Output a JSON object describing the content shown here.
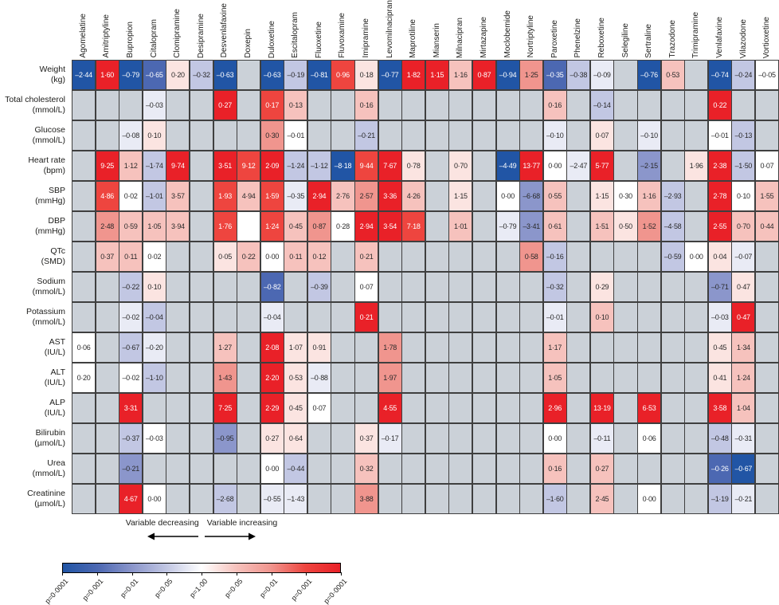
{
  "chart_data": {
    "type": "heatmap",
    "columns": [
      "Agomelatine",
      "Amitriptyline",
      "Bupropion",
      "Citalopram",
      "Clomipramine",
      "Desipramine",
      "Desvenlafaxine",
      "Doxepin",
      "Duloxetine",
      "Escitalopram",
      "Fluoxetine",
      "Fluvoxamine",
      "Imipramine",
      "Levomilnacipran",
      "Maprotiline",
      "Mianserin",
      "Milnacipran",
      "Mirtazapine",
      "Moclobemide",
      "Nortriptyline",
      "Paroxetine",
      "Phenelzine",
      "Reboxetine",
      "Selegiline",
      "Sertraline",
      "Trazodone",
      "Trimipramine",
      "Venlafaxine",
      "Vilazodone",
      "Vortioxetine"
    ],
    "rows": [
      {
        "label": "Weight",
        "unit": "(kg)"
      },
      {
        "label": "Total cholesterol",
        "unit": "(mmol/L)"
      },
      {
        "label": "Glucose",
        "unit": "(mmol/L)"
      },
      {
        "label": "Heart rate",
        "unit": "(bpm)"
      },
      {
        "label": "SBP",
        "unit": "(mmHg)"
      },
      {
        "label": "DBP",
        "unit": "(mmHg)"
      },
      {
        "label": "QTc",
        "unit": "(SMD)"
      },
      {
        "label": "Sodium",
        "unit": "(mmol/L)"
      },
      {
        "label": "Potassium",
        "unit": "(mmol/L)"
      },
      {
        "label": "AST",
        "unit": "(IU/L)"
      },
      {
        "label": "ALT",
        "unit": "(IU/L)"
      },
      {
        "label": "ALP",
        "unit": "(IU/L)"
      },
      {
        "label": "Bilirubin",
        "unit": "(µmol/L)"
      },
      {
        "label": "Urea",
        "unit": "(mmol/L)"
      },
      {
        "label": "Creatinine",
        "unit": "(µmol/L)"
      }
    ],
    "cells": [
      [
        [
          "–2·44",
          "b4"
        ],
        [
          "1·60",
          "r4"
        ],
        [
          "–0·79",
          "b4"
        ],
        [
          "–0·65",
          "b3"
        ],
        [
          "0·20",
          "r0"
        ],
        [
          "–0·32",
          "b1"
        ],
        [
          "–0·63",
          "b4"
        ],
        null,
        [
          "–0·63",
          "b4"
        ],
        [
          "–0·19",
          "b1"
        ],
        [
          "–0·81",
          "b4"
        ],
        [
          "0·96",
          "r3"
        ],
        [
          "0·18",
          "r0"
        ],
        [
          "–0·77",
          "b4"
        ],
        [
          "1·82",
          "r4"
        ],
        [
          "1·15",
          "r4"
        ],
        [
          "1·16",
          "r1"
        ],
        [
          "0·87",
          "r4"
        ],
        [
          "–0·94",
          "b4"
        ],
        [
          "1·25",
          "r2"
        ],
        [
          "–0·35",
          "b3"
        ],
        [
          "–0·38",
          "b1"
        ],
        [
          "–0·09",
          "b0"
        ],
        null,
        [
          "–0·76",
          "b4"
        ],
        [
          "0·53",
          "r1"
        ],
        null,
        [
          "–0·74",
          "b4"
        ],
        [
          "–0·24",
          "b1"
        ],
        [
          "–0·05",
          "w"
        ]
      ],
      [
        null,
        null,
        null,
        [
          "–0·03",
          "b0"
        ],
        null,
        null,
        [
          "0·27",
          "r4"
        ],
        null,
        [
          "0·17",
          "r3"
        ],
        [
          "0·13",
          "r1"
        ],
        null,
        null,
        [
          "0·16",
          "r1"
        ],
        null,
        null,
        null,
        null,
        null,
        null,
        null,
        [
          "0·16",
          "r1"
        ],
        null,
        [
          "–0·14",
          "b1"
        ],
        null,
        null,
        null,
        null,
        [
          "0·22",
          "r4"
        ],
        null,
        null
      ],
      [
        null,
        null,
        [
          "–0·08",
          "b0"
        ],
        [
          "0·10",
          "r0"
        ],
        null,
        null,
        null,
        null,
        [
          "0·30",
          "r2"
        ],
        [
          "–0·01",
          "w"
        ],
        null,
        null,
        [
          "–0·21",
          "b1"
        ],
        null,
        null,
        null,
        null,
        null,
        null,
        null,
        [
          "–0·10",
          "b0"
        ],
        null,
        [
          "0·07",
          "r0"
        ],
        null,
        [
          "–0·10",
          "b0"
        ],
        null,
        null,
        [
          "–0·01",
          "w"
        ],
        [
          "–0·13",
          "b1"
        ],
        null
      ],
      [
        null,
        [
          "9·25",
          "r4"
        ],
        [
          "1·12",
          "r1"
        ],
        [
          "–1·74",
          "b1"
        ],
        [
          "9·74",
          "r4"
        ],
        null,
        [
          "3·51",
          "r4"
        ],
        [
          "9·12",
          "r3"
        ],
        [
          "2·09",
          "r4"
        ],
        [
          "–1·24",
          "b1"
        ],
        [
          "–1·12",
          "b1"
        ],
        [
          "–8·18",
          "b4"
        ],
        [
          "9·44",
          "r3"
        ],
        [
          "7·67",
          "r4"
        ],
        [
          "0·78",
          "r0"
        ],
        null,
        [
          "0·70",
          "r0"
        ],
        null,
        [
          "–4·49",
          "b4"
        ],
        [
          "13·77",
          "r4"
        ],
        [
          "0·00",
          "w"
        ],
        [
          "–2·47",
          "b0"
        ],
        [
          "5·77",
          "r4"
        ],
        null,
        [
          "–2·15",
          "b2"
        ],
        null,
        [
          "1·96",
          "r0"
        ],
        [
          "2·38",
          "r4"
        ],
        [
          "–1·50",
          "b1"
        ],
        [
          "0·07",
          "w"
        ]
      ],
      [
        null,
        [
          "4·86",
          "r3"
        ],
        [
          "0·02",
          "w"
        ],
        [
          "–1·01",
          "b1"
        ],
        [
          "3·57",
          "r1"
        ],
        null,
        [
          "1·93",
          "r3"
        ],
        [
          "4·94",
          "r1"
        ],
        [
          "1·59",
          "r3"
        ],
        [
          "–0·35",
          "b0"
        ],
        [
          "2·94",
          "r4"
        ],
        [
          "2·76",
          "r1"
        ],
        [
          "2·57",
          "r2"
        ],
        [
          "3·36",
          "r4"
        ],
        [
          "4·26",
          "r1"
        ],
        null,
        [
          "1·15",
          "r0"
        ],
        null,
        [
          "0·00",
          "w"
        ],
        [
          "–6·68",
          "b2"
        ],
        [
          "0·55",
          "r1"
        ],
        null,
        [
          "1·15",
          "r0"
        ],
        [
          "0·30",
          "w"
        ],
        [
          "1·16",
          "r1"
        ],
        [
          "–2·93",
          "b1"
        ],
        null,
        [
          "2·78",
          "r4"
        ],
        [
          "0·10",
          "w"
        ],
        [
          "1·55",
          "r1"
        ]
      ],
      [
        null,
        [
          "2·48",
          "r2"
        ],
        [
          "0·59",
          "r1"
        ],
        [
          "1·05",
          "r1"
        ],
        [
          "3·94",
          "r1"
        ],
        null,
        [
          "1·76",
          "r3"
        ],
        [
          "",
          "w"
        ],
        [
          "1·24",
          "r3"
        ],
        [
          "0·45",
          "r1"
        ],
        [
          "0·87",
          "r2"
        ],
        [
          "0·28",
          "w"
        ],
        [
          "2·94",
          "r4"
        ],
        [
          "3·54",
          "r4"
        ],
        [
          "7·18",
          "r3"
        ],
        null,
        [
          "1·01",
          "r1"
        ],
        null,
        [
          "–0·79",
          "b0"
        ],
        [
          "–3·41",
          "b2"
        ],
        [
          "0·61",
          "r1"
        ],
        null,
        [
          "1·51",
          "r1"
        ],
        [
          "0·50",
          "r0"
        ],
        [
          "1·52",
          "r2"
        ],
        [
          "–4·58",
          "b1"
        ],
        null,
        [
          "2·55",
          "r4"
        ],
        [
          "0·70",
          "r1"
        ],
        [
          "0·44",
          "r1"
        ]
      ],
      [
        null,
        [
          "0·37",
          "r1"
        ],
        [
          "0·11",
          "r1"
        ],
        [
          "0·02",
          "w"
        ],
        null,
        null,
        [
          "0·05",
          "r0"
        ],
        [
          "0·22",
          "r1"
        ],
        [
          "0·00",
          "w"
        ],
        [
          "0·11",
          "r1"
        ],
        [
          "0·12",
          "r1"
        ],
        null,
        [
          "0·21",
          "r1"
        ],
        null,
        null,
        null,
        null,
        null,
        null,
        [
          "0·58",
          "r2"
        ],
        [
          "–0·16",
          "b1"
        ],
        null,
        null,
        null,
        null,
        [
          "–0·59",
          "b1"
        ],
        [
          "0·00",
          "w"
        ],
        [
          "0·04",
          "r0"
        ],
        [
          "–0·07",
          "b0"
        ],
        null
      ],
      [
        null,
        null,
        [
          "–0·22",
          "b1"
        ],
        [
          "0·10",
          "r0"
        ],
        null,
        null,
        null,
        null,
        [
          "–0·82",
          "b3"
        ],
        null,
        [
          "–0·39",
          "b1"
        ],
        null,
        [
          "0·07",
          "w"
        ],
        null,
        null,
        null,
        null,
        null,
        null,
        null,
        [
          "–0·32",
          "b1"
        ],
        null,
        [
          "0·29",
          "r0"
        ],
        null,
        null,
        null,
        null,
        [
          "–0·71",
          "b2"
        ],
        [
          "0·47",
          "r0"
        ],
        null
      ],
      [
        null,
        null,
        [
          "–0·02",
          "b0"
        ],
        [
          "–0·04",
          "b1"
        ],
        null,
        null,
        null,
        null,
        [
          "–0·04",
          "b0"
        ],
        null,
        null,
        null,
        [
          "0·21",
          "r4"
        ],
        null,
        null,
        null,
        null,
        null,
        null,
        null,
        [
          "–0·01",
          "b0"
        ],
        null,
        [
          "0·10",
          "r1"
        ],
        null,
        null,
        null,
        null,
        [
          "–0·03",
          "b0"
        ],
        [
          "0·47",
          "r4"
        ],
        null
      ],
      [
        [
          "0·06",
          "w"
        ],
        null,
        [
          "–0·67",
          "b1"
        ],
        [
          "–0·20",
          "b0"
        ],
        null,
        null,
        [
          "1·27",
          "r1"
        ],
        null,
        [
          "2·08",
          "r4"
        ],
        [
          "1·07",
          "r0"
        ],
        [
          "0·91",
          "r0"
        ],
        null,
        null,
        [
          "1·78",
          "r2"
        ],
        null,
        null,
        null,
        null,
        null,
        null,
        [
          "1·17",
          "r1"
        ],
        null,
        null,
        null,
        null,
        null,
        null,
        [
          "0·45",
          "r0"
        ],
        [
          "1·34",
          "r1"
        ],
        null
      ],
      [
        [
          "0·20",
          "w"
        ],
        null,
        [
          "–0·02",
          "w"
        ],
        [
          "–1·10",
          "b1"
        ],
        null,
        null,
        [
          "1·43",
          "r2"
        ],
        null,
        [
          "2·20",
          "r4"
        ],
        [
          "0·53",
          "r0"
        ],
        [
          "–0·88",
          "b0"
        ],
        null,
        null,
        [
          "1·97",
          "r2"
        ],
        null,
        null,
        null,
        null,
        null,
        null,
        [
          "1·05",
          "r1"
        ],
        null,
        null,
        null,
        null,
        null,
        null,
        [
          "0·41",
          "r0"
        ],
        [
          "1·24",
          "r1"
        ],
        null
      ],
      [
        null,
        null,
        [
          "3·31",
          "r4"
        ],
        null,
        null,
        null,
        [
          "7·25",
          "r4"
        ],
        null,
        [
          "2·29",
          "r4"
        ],
        [
          "0·45",
          "r0"
        ],
        [
          "0·07",
          "w"
        ],
        null,
        null,
        [
          "4·55",
          "r4"
        ],
        null,
        null,
        null,
        null,
        null,
        null,
        [
          "2·96",
          "r4"
        ],
        null,
        [
          "13·19",
          "r4"
        ],
        null,
        [
          "6·53",
          "r4"
        ],
        null,
        null,
        [
          "3·58",
          "r4"
        ],
        [
          "1·04",
          "r1"
        ],
        null
      ],
      [
        null,
        null,
        [
          "–0·37",
          "b1"
        ],
        [
          "–0·03",
          "w"
        ],
        null,
        null,
        [
          "–0·95",
          "b2"
        ],
        null,
        [
          "0·27",
          "r0"
        ],
        [
          "0·64",
          "r0"
        ],
        null,
        null,
        [
          "0·37",
          "r0"
        ],
        [
          "–0·17",
          "b0"
        ],
        null,
        null,
        null,
        null,
        null,
        null,
        [
          "0·00",
          "w"
        ],
        null,
        [
          "–0·11",
          "b0"
        ],
        null,
        [
          "0·06",
          "w"
        ],
        null,
        null,
        [
          "–0·48",
          "b1"
        ],
        [
          "–0·31",
          "b0"
        ],
        null
      ],
      [
        null,
        null,
        [
          "–0·21",
          "b2"
        ],
        null,
        null,
        null,
        null,
        null,
        [
          "0·00",
          "w"
        ],
        [
          "–0·44",
          "b1"
        ],
        null,
        null,
        [
          "0·32",
          "r1"
        ],
        null,
        null,
        null,
        null,
        null,
        null,
        null,
        [
          "0·16",
          "r1"
        ],
        null,
        [
          "0·27",
          "r1"
        ],
        null,
        null,
        null,
        null,
        [
          "–0·26",
          "b3"
        ],
        [
          "–0·67",
          "b4"
        ],
        null
      ],
      [
        null,
        null,
        [
          "4·67",
          "r4"
        ],
        [
          "0·00",
          "w"
        ],
        null,
        null,
        [
          "–2·68",
          "b1"
        ],
        null,
        [
          "–0·55",
          "b0"
        ],
        [
          "–1·43",
          "b0"
        ],
        null,
        null,
        [
          "3·88",
          "r2"
        ],
        null,
        null,
        null,
        null,
        null,
        null,
        null,
        [
          "–1·60",
          "b1"
        ],
        null,
        [
          "2·45",
          "r1"
        ],
        null,
        [
          "0·00",
          "w"
        ],
        null,
        null,
        [
          "–1·19",
          "b1"
        ],
        [
          "–0·21",
          "b0"
        ],
        null
      ]
    ],
    "legend": {
      "decreasing_label": "Variable decreasing",
      "increasing_label": "Variable increasing",
      "pvalue_labels": [
        "p=0·0001",
        "p=0·001",
        "p=0·01",
        "p=0·05",
        "p=1·00",
        "p=0·05",
        "p=0·01",
        "p=0·001",
        "p=0·0001"
      ]
    },
    "palette": {
      "empty": "#cbd1d8",
      "b4": "#2155a5",
      "b3": "#4c68b2",
      "b2": "#8b96cb",
      "b1": "#c2c7e3",
      "b0": "#e9ebf5",
      "w": "#ffffff",
      "r0": "#fbe4e1",
      "r1": "#f6c2bd",
      "r2": "#f0958e",
      "r3": "#ee453f",
      "r4": "#e92128",
      "grid_border": "#3f3f3f"
    },
    "xlabel": "",
    "ylabel": "",
    "title": ""
  }
}
